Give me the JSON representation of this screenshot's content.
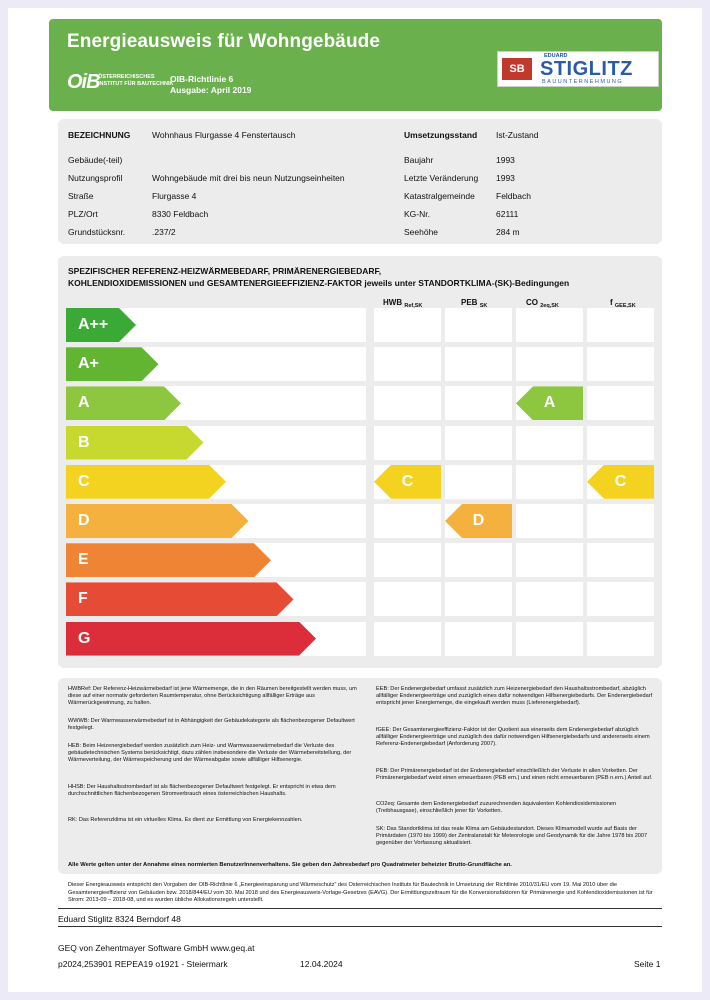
{
  "header": {
    "title": "Energieausweis für Wohngebäude",
    "oib_logo": "OiB",
    "oib_sub1": "ÖSTERREICHISCHES",
    "oib_sub2": "INSTITUT FÜR BAUTECHNIK",
    "richtlinie": "OIB-Richtlinie 6",
    "ausgabe": "Ausgabe: April 2019",
    "company_logo": {
      "mark": "SB",
      "small": "EDUARD",
      "name": "STIGLITZ",
      "sub": "BAUUNTERNEHMUNG"
    }
  },
  "info": {
    "bezeichnung_label": "BEZEICHNUNG",
    "bezeichnung": "Wohnhaus Flurgasse 4 Fenstertausch",
    "umsetzung_label": "Umsetzungsstand",
    "umsetzung": "Ist-Zustand",
    "gebaeude_label": "Gebäude(-teil)",
    "gebaeude": "",
    "baujahr_label": "Baujahr",
    "baujahr": "1993",
    "nutzung_label": "Nutzungsprofil",
    "nutzung": "Wohngebäude mit drei bis neun Nutzungseinheiten",
    "veraenderung_label": "Letzte Veränderung",
    "veraenderung": "1993",
    "strasse_label": "Straße",
    "strasse": "Flurgasse 4",
    "kataster_label": "Katastralgemeinde",
    "kataster": "Feldbach",
    "plz_label": "PLZ/Ort",
    "plz": "8330 Feldbach",
    "kg_label": "KG-Nr.",
    "kg": "62111",
    "grund_label": "Grundstücksnr.",
    "grund": ".237/2",
    "seehoehe_label": "Seehöhe",
    "seehoehe": "284 m"
  },
  "scale": {
    "heading1": "SPEZIFISCHER REFERENZ-HEIZWÄRMEBEDARF, PRIMÄRENERGIEBEDARF,",
    "heading2": "KOHLENDIOXIDEMISSIONEN und GESAMTENERGIEEFFIZIENZ-FAKTOR jeweils unter STANDORTKLIMA-(SK)-Bedingungen",
    "columns": [
      {
        "main": "HWB",
        "sub": "Ref,SK"
      },
      {
        "main": "PEB",
        "sub": "SK"
      },
      {
        "main": "CO",
        "sub": "2eq,SK"
      },
      {
        "main": "f",
        "sub": "GEE,SK"
      }
    ],
    "classes": [
      {
        "label": "A++",
        "color": "#3aa935"
      },
      {
        "label": "A+",
        "color": "#62b531"
      },
      {
        "label": "A",
        "color": "#8dc63f"
      },
      {
        "label": "B",
        "color": "#c7d92f"
      },
      {
        "label": "C",
        "color": "#f4d320"
      },
      {
        "label": "D",
        "color": "#f4b13d"
      },
      {
        "label": "E",
        "color": "#ee8434"
      },
      {
        "label": "F",
        "color": "#e64b35"
      },
      {
        "label": "G",
        "color": "#dc2d3a"
      }
    ],
    "ratings": [
      {
        "column": 0,
        "label": "C",
        "class_index": 4,
        "color": "#f4d320"
      },
      {
        "column": 1,
        "label": "D",
        "class_index": 5,
        "color": "#f4b13d"
      },
      {
        "column": 2,
        "label": "A",
        "class_index": 2,
        "color": "#8dc63f"
      },
      {
        "column": 3,
        "label": "C",
        "class_index": 4,
        "color": "#f4d320"
      }
    ]
  },
  "legend": {
    "hwb": "HWBRef: Der Referenz-Heizwärmebedarf ist jene Wärmemenge, die in den Räumen bereitgestellt werden muss, um diese auf einer normativ geforderten Raumtemperatur, ohne Berücksichtigung allfälliger Erträge aus Wärmerückgewinnung, zu halten.",
    "wwwb": "WWWB: Der Warmwasserwärmebedarf ist in Abhängigkeit der Gebäudekategorie als flächenbezogener Defaultwert festgelegt.",
    "heb": "HEB: Beim Heizenergiebedarf werden zusätzlich zum Heiz- und Warmwasserwärmebedarf die Verluste des gebäudetechnischen Systems berücksichtigt, dazu zählen insbesondere die Verluste der Wärmebereitstellung, der Wärmeverteilung, der Wärmespeicherung und der Wärmeabgabe sowie allfälliger Hilfsenergie.",
    "hhsb": "HHSB: Der Haushaltsstrombedarf ist als flächenbezogener Defaultwert festgelegt. Er entspricht in etwa dem durchschnittlichen flächenbezogenen Stromverbrauch eines österreichischen Haushalts.",
    "rk": "RK: Das Referenzklima ist ein virtuelles Klima. Es dient zur Ermittlung von Energiekennzahlen.",
    "eeb": "EEB: Der Endenergiebedarf umfasst zusätzlich zum Heizenergiebedarf den Haushaltsstrombedarf, abzüglich allfälliger Endenergieerträge und zuzüglich eines dafür notwendigen Hilfsenergiebedarfs. Der Endenergiebedarf entspricht jener Energiemenge, die eingekauft werden muss (Lieferenergiebedarf).",
    "fgee": "fGEE: Der Gesamtenergieeffizienz-Faktor ist der Quotient aus einerseits dem Endenergiebedarf abzüglich allfälliger Endenergieerträge und zuzüglich des dafür notwendigen Hilfsenergiebedarfs und andererseits einem Referenz-Endenergiebedarf (Anforderung 2007).",
    "peb": "PEB: Der Primärenergiebedarf ist der Endenergiebedarf einschließlich der Verluste in allen Vorketten. Der Primärenergiebedarf weist einen erneuerbaren (PEB ern.) und einen nicht erneuerbaren (PEB n.ern.) Anteil auf.",
    "co2": "CO2eq: Gesamte dem Endenergiebedarf zuzurechnenden äquivalenten Kohlendioxidemissionen (Treibhausgase), einschließlich jener für Vorketten.",
    "sk": "SK: Das Standortklima ist das reale Klima am Gebäudestandort. Dieses Klimamodell wurde auf Basis der Primärdaten (1970 bis 1999) der Zentralanstalt für Meteorologie und Geodynamik für die Jahre 1978 bis 2007 gegenüber der Vorfassung aktualisiert.",
    "footer": "Alle Werte gelten unter der Annahme eines normierten BenutzerInnenverhaltens. Sie geben den Jahresbedarf pro Quadratmeter beheizter Brutto-Grundfläche an."
  },
  "note": "Dieser Energieausweis entspricht den Vorgaben der OIB-Richtlinie 6 „Energieeinsparung und Wärmeschutz“ des Österreichischen Instituts für Bautechnik in Umsetzung der Richtlinie 2010/31/EU vom 19. Mai 2010 über die Gesamtenergieeffizienz von Gebäuden bzw. 2018/844/EU vom 30. Mai 2018 und des Energieausweis-Vorlage-Gesetzes (EAVG). Der Ermittlungszeitraum für die Konversionsfaktoren für Primärenergie und Kohlendioxidemissionen ist für Strom: 2013-09 – 2018-08, und es wurden übliche Allokationsregeln unterstellt.",
  "footer": {
    "company": "Eduard Stiglitz 8324 Berndorf 48",
    "software": "GEQ von Zehentmayer Software GmbH www.geq.at",
    "code": "p2024,253901 REPEA19 o1921 - Steiermark",
    "date": "12.04.2024",
    "page": "Seite 1"
  }
}
